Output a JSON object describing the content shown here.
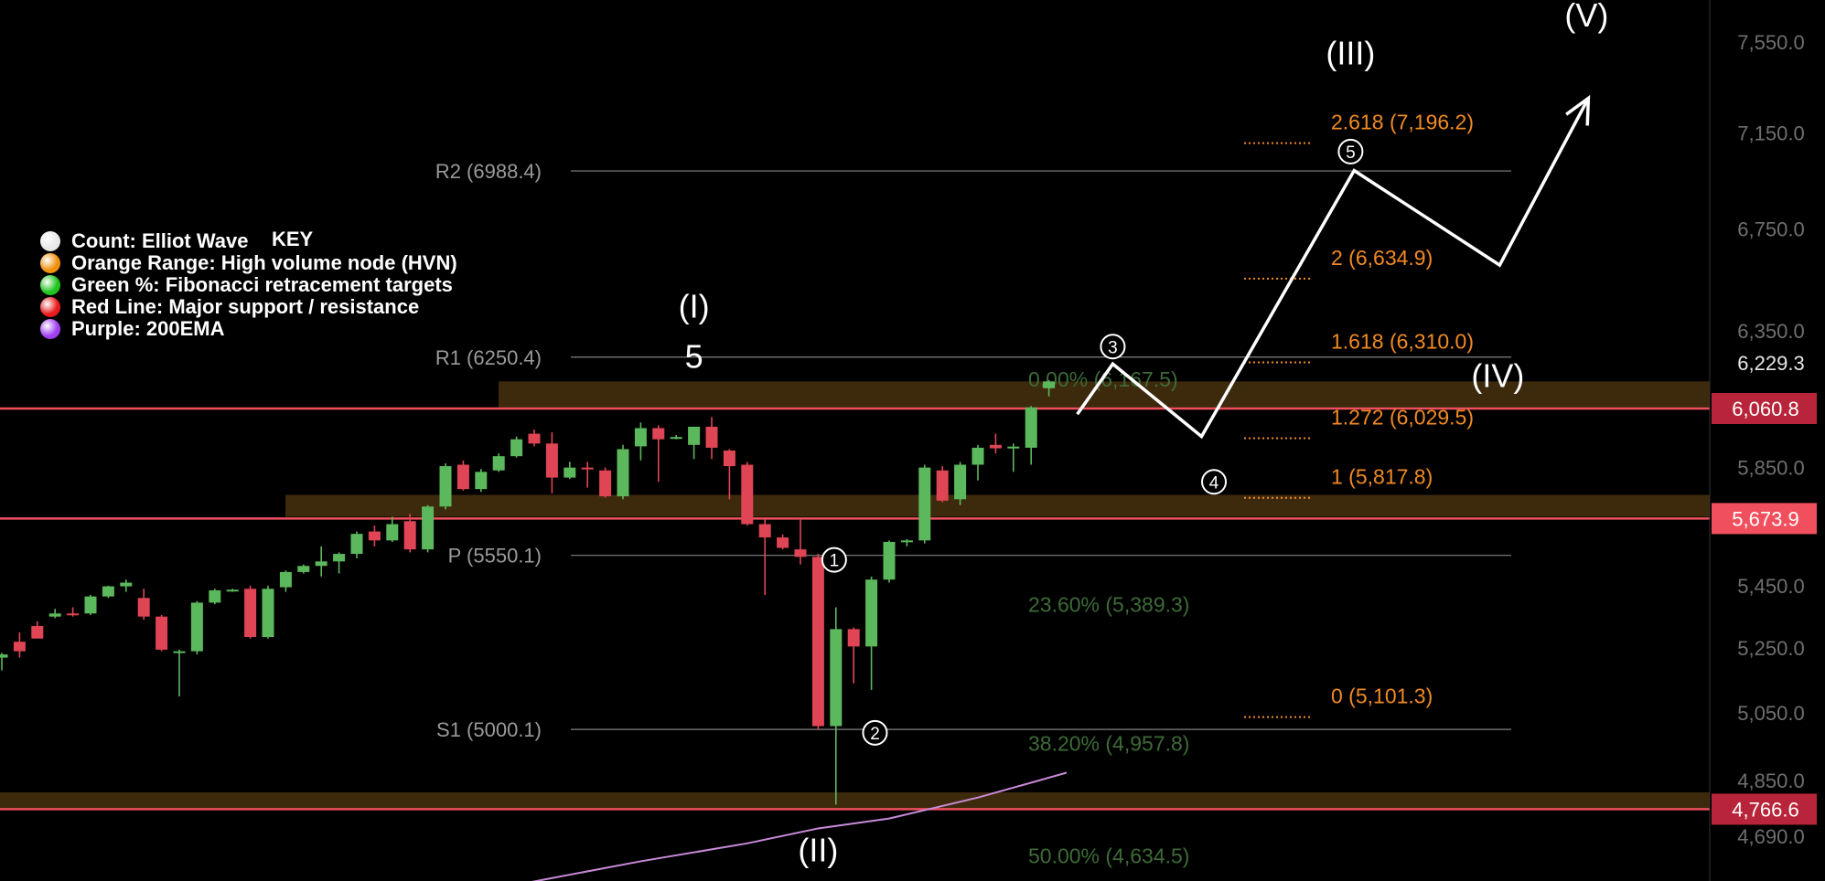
{
  "chart_data": {
    "type": "candlestick",
    "title": "",
    "y_axis": {
      "scale": "log",
      "tick_labels": [
        "7,550.0",
        "7,150.0",
        "6,750.0",
        "6,350.0",
        "5,850.0",
        "5,450.0",
        "5,250.0",
        "5,050.0",
        "4,850.0",
        "4,690.0"
      ],
      "ticks": [
        7550,
        7150,
        6750,
        6350,
        5850,
        5450,
        5250,
        5050,
        4850,
        4690
      ],
      "price_label": "6,229.3",
      "price_value": 6229.3
    },
    "candles": [
      {
        "o": 5220,
        "h": 5235,
        "l": 5180,
        "c": 5230
      },
      {
        "o": 5270,
        "h": 5300,
        "l": 5220,
        "c": 5240
      },
      {
        "o": 5320,
        "h": 5335,
        "l": 5280,
        "c": 5280
      },
      {
        "o": 5350,
        "h": 5375,
        "l": 5345,
        "c": 5360
      },
      {
        "o": 5360,
        "h": 5380,
        "l": 5350,
        "c": 5355
      },
      {
        "o": 5360,
        "h": 5420,
        "l": 5355,
        "c": 5415
      },
      {
        "o": 5415,
        "h": 5450,
        "l": 5410,
        "c": 5448
      },
      {
        "o": 5448,
        "h": 5470,
        "l": 5430,
        "c": 5460
      },
      {
        "o": 5410,
        "h": 5440,
        "l": 5340,
        "c": 5350
      },
      {
        "o": 5350,
        "h": 5355,
        "l": 5240,
        "c": 5245
      },
      {
        "o": 5235,
        "h": 5245,
        "l": 5100,
        "c": 5240
      },
      {
        "o": 5240,
        "h": 5400,
        "l": 5230,
        "c": 5395
      },
      {
        "o": 5395,
        "h": 5440,
        "l": 5390,
        "c": 5435
      },
      {
        "o": 5435,
        "h": 5440,
        "l": 5430,
        "c": 5437
      },
      {
        "o": 5440,
        "h": 5450,
        "l": 5280,
        "c": 5285
      },
      {
        "o": 5285,
        "h": 5450,
        "l": 5280,
        "c": 5440
      },
      {
        "o": 5445,
        "h": 5500,
        "l": 5430,
        "c": 5495
      },
      {
        "o": 5495,
        "h": 5520,
        "l": 5490,
        "c": 5515
      },
      {
        "o": 5515,
        "h": 5580,
        "l": 5480,
        "c": 5530
      },
      {
        "o": 5530,
        "h": 5560,
        "l": 5490,
        "c": 5555
      },
      {
        "o": 5555,
        "h": 5630,
        "l": 5540,
        "c": 5622
      },
      {
        "o": 5630,
        "h": 5650,
        "l": 5580,
        "c": 5600
      },
      {
        "o": 5600,
        "h": 5680,
        "l": 5595,
        "c": 5655
      },
      {
        "o": 5665,
        "h": 5690,
        "l": 5560,
        "c": 5570
      },
      {
        "o": 5570,
        "h": 5720,
        "l": 5560,
        "c": 5715
      },
      {
        "o": 5715,
        "h": 5865,
        "l": 5705,
        "c": 5855
      },
      {
        "o": 5860,
        "h": 5875,
        "l": 5770,
        "c": 5775
      },
      {
        "o": 5775,
        "h": 5845,
        "l": 5765,
        "c": 5835
      },
      {
        "o": 5840,
        "h": 5900,
        "l": 5835,
        "c": 5890
      },
      {
        "o": 5890,
        "h": 5960,
        "l": 5885,
        "c": 5950
      },
      {
        "o": 5970,
        "h": 5985,
        "l": 5925,
        "c": 5935
      },
      {
        "o": 5935,
        "h": 5975,
        "l": 5760,
        "c": 5815
      },
      {
        "o": 5815,
        "h": 5870,
        "l": 5810,
        "c": 5850
      },
      {
        "o": 5850,
        "h": 5870,
        "l": 5780,
        "c": 5845
      },
      {
        "o": 5840,
        "h": 5850,
        "l": 5745,
        "c": 5750
      },
      {
        "o": 5750,
        "h": 5930,
        "l": 5740,
        "c": 5915
      },
      {
        "o": 5925,
        "h": 6010,
        "l": 5875,
        "c": 5990
      },
      {
        "o": 5990,
        "h": 6000,
        "l": 5800,
        "c": 5950
      },
      {
        "o": 5955,
        "h": 5965,
        "l": 5950,
        "c": 5958
      },
      {
        "o": 5930,
        "h": 5995,
        "l": 5880,
        "c": 5995
      },
      {
        "o": 5995,
        "h": 6030,
        "l": 5880,
        "c": 5920
      },
      {
        "o": 5910,
        "h": 5915,
        "l": 5740,
        "c": 5855
      },
      {
        "o": 5860,
        "h": 5870,
        "l": 5650,
        "c": 5655
      },
      {
        "o": 5655,
        "h": 5670,
        "l": 5420,
        "c": 5610
      },
      {
        "o": 5610,
        "h": 5620,
        "l": 5570,
        "c": 5575
      },
      {
        "o": 5570,
        "h": 5670,
        "l": 5520,
        "c": 5545
      },
      {
        "o": 5545,
        "h": 5555,
        "l": 5000,
        "c": 5010
      },
      {
        "o": 5010,
        "h": 5380,
        "l": 4780,
        "c": 5310
      },
      {
        "o": 5310,
        "h": 5315,
        "l": 5140,
        "c": 5255
      },
      {
        "o": 5255,
        "h": 5480,
        "l": 5120,
        "c": 5470
      },
      {
        "o": 5470,
        "h": 5600,
        "l": 5460,
        "c": 5595
      },
      {
        "o": 5595,
        "h": 5605,
        "l": 5580,
        "c": 5600
      },
      {
        "o": 5600,
        "h": 5860,
        "l": 5590,
        "c": 5850
      },
      {
        "o": 5840,
        "h": 5855,
        "l": 5730,
        "c": 5735
      },
      {
        "o": 5740,
        "h": 5870,
        "l": 5720,
        "c": 5860
      },
      {
        "o": 5860,
        "h": 5930,
        "l": 5805,
        "c": 5920
      },
      {
        "o": 5930,
        "h": 5970,
        "l": 5900,
        "c": 5918
      },
      {
        "o": 5922,
        "h": 5935,
        "l": 5835,
        "c": 5924
      },
      {
        "o": 5920,
        "h": 6070,
        "l": 5860,
        "c": 6065
      },
      {
        "o": 6135,
        "h": 6165,
        "l": 6105,
        "c": 6160
      }
    ],
    "pivots": [
      {
        "label": "R2 (6988.4)",
        "value": 6988.4
      },
      {
        "label": "R1 (6250.4)",
        "value": 6250.4
      },
      {
        "label": "P (5550.1)",
        "value": 5550.1
      },
      {
        "label": "S1 (5000.1)",
        "value": 5000.1
      }
    ],
    "fib_extensions": [
      {
        "label": "2.618 (7,196.2)",
        "value": 7196.2
      },
      {
        "label": "2 (6,634.9)",
        "value": 6634.9
      },
      {
        "label": "1.618 (6,310.0)",
        "value": 6310.0
      },
      {
        "label": "1.272 (6,029.5)",
        "value": 6029.5
      },
      {
        "label": "1 (5,817.8)",
        "value": 5817.8
      },
      {
        "label": "0 (5,101.3)",
        "value": 5101.3
      }
    ],
    "fib_retracements": [
      {
        "label": "0.00% (6,167.5)",
        "value": 6167.5
      },
      {
        "label": "23.60% (5,389.3)",
        "value": 5389.3
      },
      {
        "label": "38.20% (4,957.8)",
        "value": 4957.8
      },
      {
        "label": "50.00% (4,634.5)",
        "value": 4634.5
      }
    ],
    "support_resistance": [
      {
        "label": "6,060.8",
        "value": 6060.8
      },
      {
        "label": "5,673.9",
        "value": 5673.9
      },
      {
        "label": "4,766.6",
        "value": 4766.6
      }
    ],
    "hvn_zones": [
      {
        "low": 6065,
        "high": 6160
      },
      {
        "low": 5680,
        "high": 5755
      },
      {
        "low": 4770,
        "high": 4815
      }
    ],
    "ema200": [
      {
        "i": 29.5,
        "v": 4560
      },
      {
        "i": 36,
        "v": 4620
      },
      {
        "i": 42,
        "v": 4670
      },
      {
        "i": 46,
        "v": 4712
      },
      {
        "i": 50,
        "v": 4740
      },
      {
        "i": 55,
        "v": 4800
      },
      {
        "i": 60,
        "v": 4872
      }
    ],
    "wave_labels": [
      {
        "text": "(I)",
        "i": 39,
        "v": 6400
      },
      {
        "text": "5",
        "i": 39,
        "v": 6210
      },
      {
        "text": "(II)",
        "i": 46,
        "v": 4620
      },
      {
        "text": "(III)",
        "i": 76,
        "v": 7450
      },
      {
        "text": "(IV)",
        "i": 84.3,
        "v": 6140
      },
      {
        "text": "(V)",
        "i": 89.3,
        "v": 7620
      }
    ],
    "wave_circles": [
      {
        "text": "1",
        "i": 46.9,
        "v": 5535
      },
      {
        "text": "2",
        "i": 49.2,
        "v": 4990
      },
      {
        "text": "3",
        "i": 62.6,
        "v": 6290
      },
      {
        "text": "4",
        "i": 68.3,
        "v": 5800
      },
      {
        "text": "5",
        "i": 76,
        "v": 7070
      }
    ],
    "projection_path": [
      {
        "i": 60.6,
        "v": 6040
      },
      {
        "i": 62.6,
        "v": 6225
      },
      {
        "i": 67.6,
        "v": 5960
      },
      {
        "i": 76.2,
        "v": 6990
      },
      {
        "i": 84.4,
        "v": 6605
      },
      {
        "i": 89.4,
        "v": 7300
      }
    ],
    "legend": {
      "title": "KEY",
      "items": [
        {
          "label": "Count: Elliot Wave",
          "color": "#e8e8e8"
        },
        {
          "label": "Orange Range: High volume node (HVN)",
          "color": "#f0900e"
        },
        {
          "label": "Green %: Fibonacci retracement targets",
          "color": "#1fc41f"
        },
        {
          "label": "Red Line: Major support / resistance",
          "color": "#e81c1c"
        },
        {
          "label": "Purple: 200EMA",
          "color": "#a040f0"
        }
      ]
    },
    "colors": {
      "up": "#5cb85c",
      "down": "#e04555",
      "fib_extension": "#f08a24",
      "fib_retracement": "#3d6b36",
      "pivot": "#9a9a9a",
      "hvn": "#3d2a0c",
      "support": "#f0505e",
      "ema": "#c88ad8"
    }
  }
}
